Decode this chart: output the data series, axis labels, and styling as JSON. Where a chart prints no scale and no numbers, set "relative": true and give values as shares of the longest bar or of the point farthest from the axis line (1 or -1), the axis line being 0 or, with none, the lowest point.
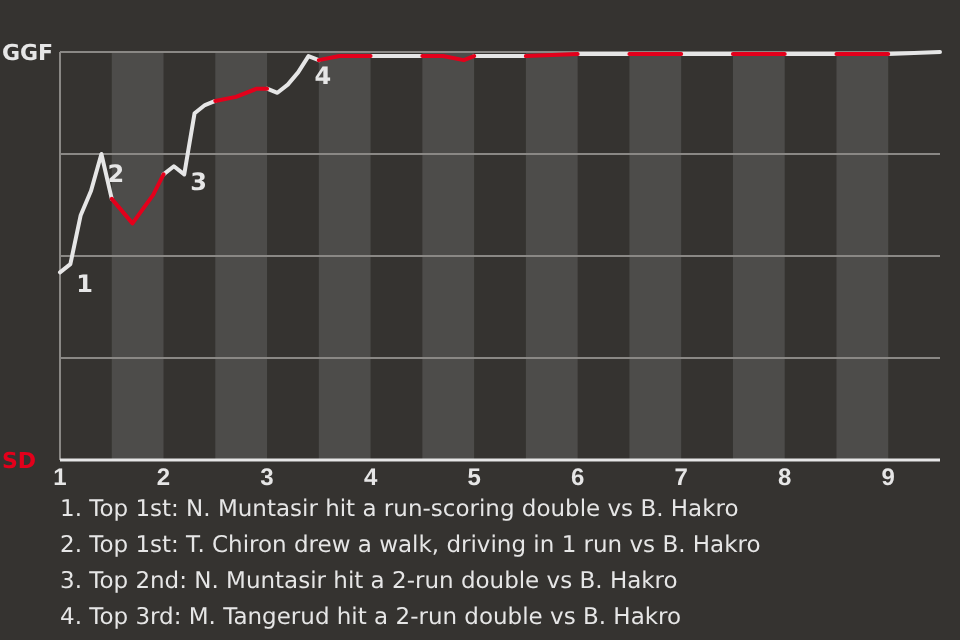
{
  "chart_data": {
    "type": "line",
    "relative": true,
    "xlim": [
      1,
      9.5
    ],
    "xticks": [
      1,
      2,
      3,
      4,
      5,
      6,
      7,
      8,
      9
    ],
    "grid": "y",
    "bands": [
      {
        "axis": "x",
        "from": 1.5,
        "to": 2,
        "color": "#4d4c4a"
      },
      {
        "axis": "x",
        "from": 2.5,
        "to": 3,
        "color": "#4d4c4a"
      },
      {
        "axis": "x",
        "from": 3.5,
        "to": 4,
        "color": "#4d4c4a"
      },
      {
        "axis": "x",
        "from": 4.5,
        "to": 5,
        "color": "#4d4c4a"
      },
      {
        "axis": "x",
        "from": 5.5,
        "to": 6,
        "color": "#4d4c4a"
      },
      {
        "axis": "x",
        "from": 6.5,
        "to": 7,
        "color": "#4d4c4a"
      },
      {
        "axis": "x",
        "from": 7.5,
        "to": 8,
        "color": "#4d4c4a"
      },
      {
        "axis": "x",
        "from": 8.5,
        "to": 9,
        "color": "#4d4c4a"
      }
    ],
    "series": [
      {
        "color": "#e6e6e6",
        "x": [
          1,
          1.1,
          1.2,
          1.3,
          1.4,
          1.5,
          null,
          2,
          2.1,
          2.2,
          2.3,
          2.4,
          2.5,
          null,
          3,
          3.1,
          3.2,
          3.3,
          3.4,
          3.5,
          null,
          4,
          4.5,
          null,
          5,
          5.5,
          null,
          6,
          6.5,
          null,
          7,
          7.5,
          null,
          8,
          8.5,
          null,
          9,
          9.5
        ],
        "values": [
          0.46,
          0.48,
          0.6,
          0.66,
          0.75,
          0.64,
          null,
          0.7,
          0.72,
          0.7,
          0.85,
          0.87,
          0.88,
          null,
          0.91,
          0.9,
          0.92,
          0.95,
          0.99,
          0.98,
          null,
          0.99,
          0.99,
          null,
          0.99,
          0.99,
          null,
          0.995,
          0.995,
          null,
          0.995,
          0.995,
          null,
          0.995,
          0.995,
          null,
          0.995,
          1
        ]
      },
      {
        "color": "#e3001b",
        "x": [
          1.5,
          1.7,
          1.9,
          2,
          null,
          2.5,
          2.7,
          2.9,
          3,
          null,
          3.5,
          3.7,
          4,
          null,
          4.5,
          4.7,
          4.9,
          5,
          null,
          5.5,
          6,
          null,
          6.5,
          7,
          null,
          7.5,
          8,
          null,
          8.5,
          9
        ],
        "values": [
          0.64,
          0.58,
          0.65,
          0.7,
          null,
          0.88,
          0.89,
          0.91,
          0.91,
          null,
          0.98,
          0.99,
          0.99,
          null,
          0.99,
          0.99,
          0.98,
          0.99,
          null,
          0.99,
          0.995,
          null,
          0.995,
          0.995,
          null,
          0.995,
          0.995,
          null,
          0.995,
          0.995
        ]
      }
    ],
    "annotations": [
      "GGF",
      "SD",
      {
        "text": "1",
        "x": 1.1,
        "y": 0.48
      },
      {
        "text": "2",
        "x": 1.4,
        "y": 0.75
      },
      {
        "text": "3",
        "x": 2.2,
        "y": 0.73
      },
      {
        "text": "4",
        "x": 3.4,
        "y": 0.99
      },
      "1. Top 1st: N. Muntasir hit a run-scoring double vs B. Hakro",
      "2. Top 1st: T. Chiron drew a walk, driving in 1 run vs B. Hakro",
      "3. Top 2nd: N. Muntasir hit a 2-run double vs B. Hakro",
      "4. Top 3rd: M. Tangerud hit a 2-run double vs B. Hakro"
    ]
  }
}
